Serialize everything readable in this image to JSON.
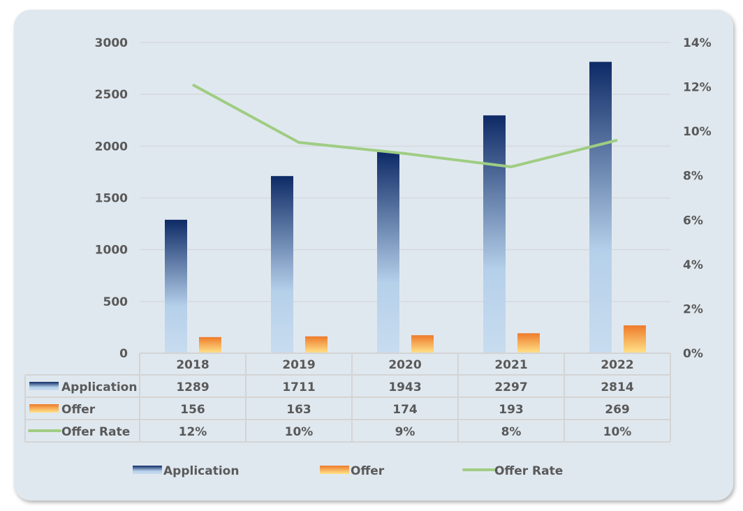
{
  "chart_data": {
    "type": "bar",
    "categories": [
      "2018",
      "2019",
      "2020",
      "2021",
      "2022"
    ],
    "series": [
      {
        "name": "Application",
        "type": "bar",
        "axis": "left",
        "values": [
          1289,
          1711,
          1943,
          2297,
          2814
        ],
        "table": [
          "1289",
          "1711",
          "1943",
          "2297",
          "2814"
        ]
      },
      {
        "name": "Offer",
        "type": "bar",
        "axis": "left",
        "values": [
          156,
          163,
          174,
          193,
          269
        ],
        "table": [
          "156",
          "163",
          "174",
          "193",
          "269"
        ]
      },
      {
        "name": "Offer Rate",
        "type": "line",
        "axis": "right",
        "values": [
          0.121,
          0.095,
          0.09,
          0.084,
          0.096
        ],
        "table": [
          "12%",
          "10%",
          "9%",
          "8%",
          "10%"
        ]
      }
    ],
    "ylim": [
      0,
      3000
    ],
    "yticks": [
      "0",
      "500",
      "1000",
      "1500",
      "2000",
      "2500",
      "3000"
    ],
    "y2lim": [
      0,
      0.14
    ],
    "y2ticks": [
      "0%",
      "2%",
      "4%",
      "6%",
      "8%",
      "10%",
      "12%",
      "14%"
    ],
    "grid": true,
    "legend_position": "bottom",
    "data_table": true
  },
  "colors": {
    "app_top": "#0e2a66",
    "app_bottom": "#c8dcef",
    "offer_top": "#ee7b2a",
    "offer_bottom": "#ffe38a",
    "line": "#9fcd83"
  }
}
